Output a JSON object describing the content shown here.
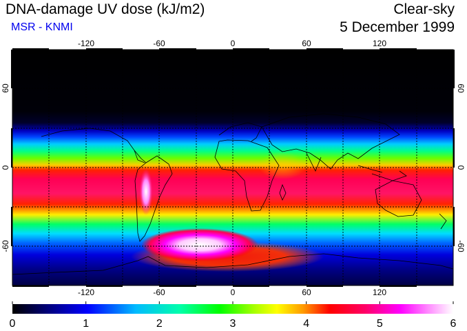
{
  "title": "DNA-damage UV dose (kJ/m2)",
  "source": "MSR - KNMI",
  "sky_condition": "Clear-sky",
  "date": "5 December 1999",
  "longitude_ticks": [
    "-120",
    "-60",
    "0",
    "60",
    "120"
  ],
  "longitude_values": [
    -120,
    -60,
    0,
    60,
    120
  ],
  "latitude_ticks": [
    "60",
    "0",
    "-60"
  ],
  "latitude_values": [
    60,
    0,
    -60
  ],
  "lon_range": [
    -180,
    180
  ],
  "lat_range": [
    -90,
    90
  ],
  "colorbar": {
    "min": 0,
    "max": 6,
    "labels": [
      "0",
      "1",
      "2",
      "3",
      "4",
      "5",
      "6"
    ],
    "label_values": [
      0,
      1,
      2,
      3,
      4,
      5,
      6
    ],
    "colors": [
      "#000000",
      "#00007f",
      "#0000ff",
      "#00aaff",
      "#00ffff",
      "#00ff7f",
      "#00ff00",
      "#aaff00",
      "#ffff00",
      "#ff9900",
      "#ff0000",
      "#ff0066",
      "#ff00ff",
      "#ff99ff",
      "#ffffff"
    ]
  }
}
